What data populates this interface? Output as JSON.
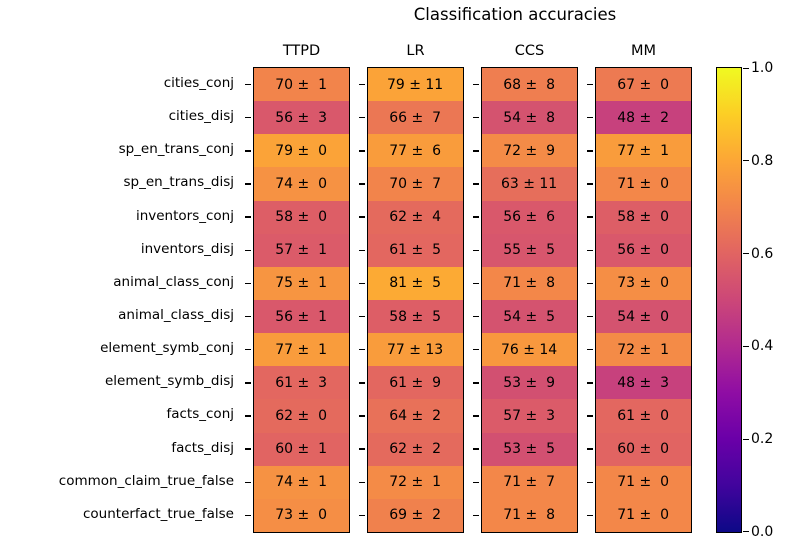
{
  "figure": {
    "title": "Classification accuracies"
  },
  "chart_data": {
    "type": "heatmap",
    "title": "Classification accuracies",
    "columns": [
      "TTPD",
      "LR",
      "CCS",
      "MM"
    ],
    "rows": [
      "cities_conj",
      "cities_disj",
      "sp_en_trans_conj",
      "sp_en_trans_disj",
      "inventors_conj",
      "inventors_disj",
      "animal_class_conj",
      "animal_class_disj",
      "element_symb_conj",
      "element_symb_disj",
      "facts_conj",
      "facts_disj",
      "common_claim_true_false",
      "counterfact_true_false"
    ],
    "series": [
      {
        "name": "TTPD",
        "values": [
          70,
          56,
          79,
          74,
          58,
          57,
          75,
          56,
          77,
          61,
          62,
          60,
          74,
          73
        ],
        "errors": [
          1,
          3,
          0,
          0,
          0,
          1,
          1,
          1,
          1,
          3,
          0,
          1,
          1,
          0
        ]
      },
      {
        "name": "LR",
        "values": [
          79,
          66,
          77,
          70,
          62,
          61,
          81,
          58,
          77,
          61,
          64,
          62,
          72,
          69
        ],
        "errors": [
          11,
          7,
          6,
          7,
          4,
          5,
          5,
          5,
          13,
          9,
          2,
          2,
          1,
          2
        ]
      },
      {
        "name": "CCS",
        "values": [
          68,
          54,
          72,
          63,
          56,
          55,
          71,
          54,
          76,
          53,
          57,
          53,
          71,
          71
        ],
        "errors": [
          8,
          8,
          9,
          11,
          6,
          5,
          8,
          5,
          14,
          9,
          3,
          5,
          7,
          8
        ]
      },
      {
        "name": "MM",
        "values": [
          67,
          48,
          77,
          71,
          58,
          56,
          73,
          54,
          72,
          48,
          61,
          60,
          71,
          71
        ],
        "errors": [
          0,
          2,
          1,
          0,
          0,
          0,
          0,
          0,
          1,
          3,
          0,
          0,
          0,
          0
        ]
      }
    ],
    "value_format": "{value} ± {error}",
    "scale": {
      "vmin": 0,
      "vmax": 100
    },
    "colorbar": {
      "tick_labels": [
        "0.0",
        "0.2",
        "0.4",
        "0.6",
        "0.8",
        "1.0"
      ],
      "vmin": 0.0,
      "vmax": 1.0,
      "position": "right"
    },
    "colormap": {
      "name": "plasma",
      "anchors": [
        "#0d0887",
        "#41049d",
        "#6a00a8",
        "#8f0da4",
        "#b12a90",
        "#cc4778",
        "#e16462",
        "#f2844b",
        "#fca636",
        "#fcce25",
        "#f0f921"
      ]
    },
    "grid": false,
    "legend": false
  }
}
